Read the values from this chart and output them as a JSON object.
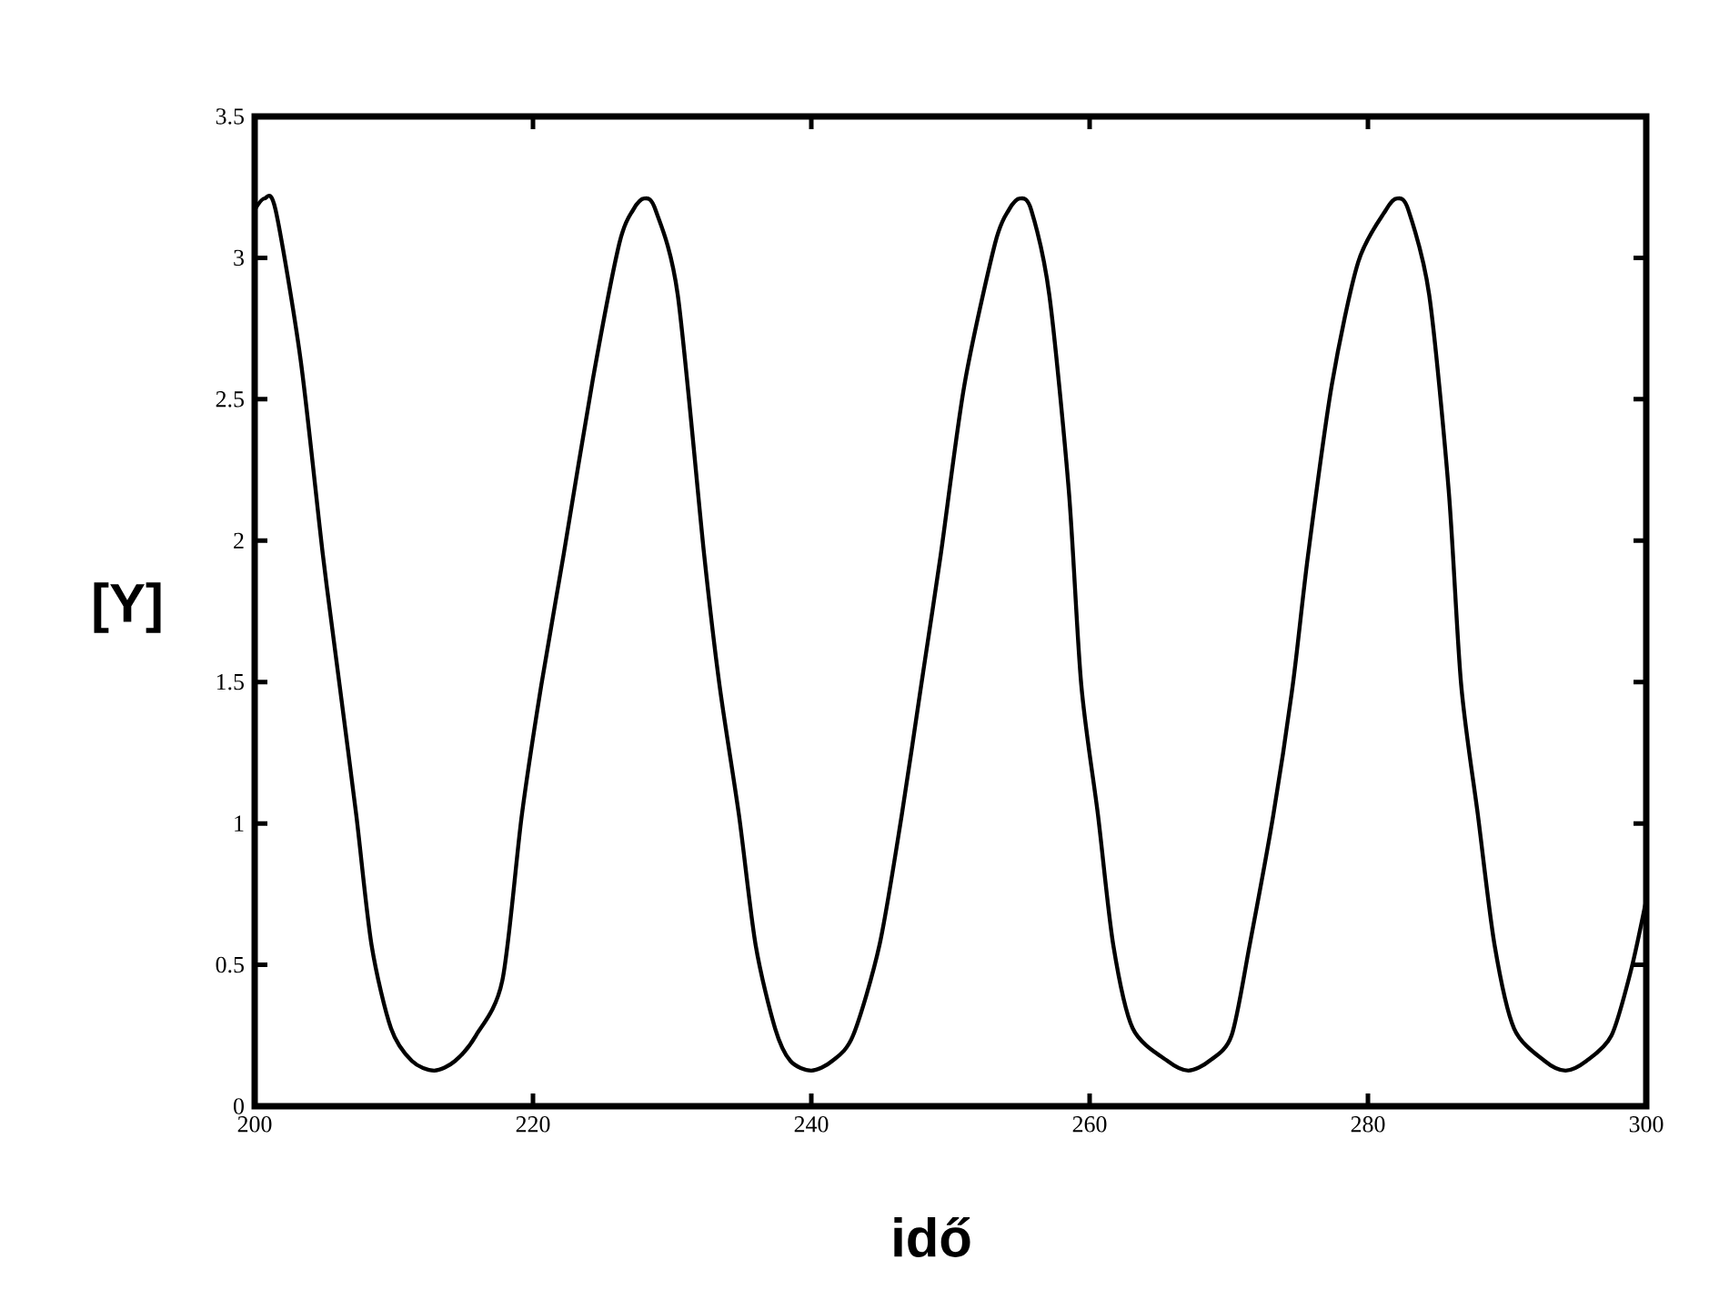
{
  "chart_data": {
    "type": "line",
    "xlabel": "idő",
    "ylabel": "[Y]",
    "xlim": [
      200,
      300
    ],
    "ylim": [
      0,
      3.5
    ],
    "xticks": [
      200,
      220,
      240,
      260,
      280,
      300
    ],
    "yticks": [
      0,
      0.5,
      1,
      1.5,
      2,
      2.5,
      3,
      3.5
    ],
    "series": [
      {
        "color": "#000000",
        "x": [
          200,
          200.7,
          201.5,
          203.3,
          204.9,
          206.1,
          207.3,
          208.4,
          209.8,
          211.3,
          212.9,
          214.4,
          215.9,
          217.8,
          219.2,
          220.6,
          222.2,
          224.3,
          226.2,
          227.2,
          228.0,
          228.8,
          230.4,
          232.3,
          233.4,
          234.8,
          236.0,
          237.4,
          238.5,
          240.0,
          241.5,
          243.0,
          244.9,
          246.5,
          247.9,
          249.3,
          251.0,
          253.2,
          254.2,
          255.0,
          255.8,
          257.1,
          258.5,
          259.4,
          260.6,
          261.7,
          263.1,
          265.6,
          267.1,
          268.6,
          270.2,
          271.5,
          273.2,
          274.6,
          275.7,
          277.4,
          279.3,
          281.3,
          282.1,
          282.9,
          284.4,
          285.8,
          286.7,
          287.9,
          289.1,
          290.5,
          292.7,
          294.2,
          295.7,
          297.5,
          298.9,
          300
        ],
        "values": [
          3.17,
          3.21,
          3.17,
          2.64,
          1.95,
          1.49,
          1.03,
          0.57,
          0.275,
          0.16,
          0.126,
          0.16,
          0.25,
          0.445,
          1.03,
          1.49,
          1.95,
          2.57,
          3.05,
          3.17,
          3.21,
          3.17,
          2.87,
          1.95,
          1.49,
          1.03,
          0.57,
          0.275,
          0.16,
          0.126,
          0.16,
          0.25,
          0.57,
          1.03,
          1.49,
          1.95,
          2.55,
          3.05,
          3.17,
          3.21,
          3.17,
          2.87,
          2.18,
          1.49,
          1.03,
          0.57,
          0.275,
          0.16,
          0.126,
          0.16,
          0.25,
          0.57,
          1.03,
          1.49,
          1.95,
          2.55,
          2.985,
          3.17,
          3.21,
          3.17,
          2.87,
          2.18,
          1.49,
          1.03,
          0.57,
          0.275,
          0.16,
          0.126,
          0.16,
          0.25,
          0.48,
          0.73
        ]
      }
    ]
  }
}
